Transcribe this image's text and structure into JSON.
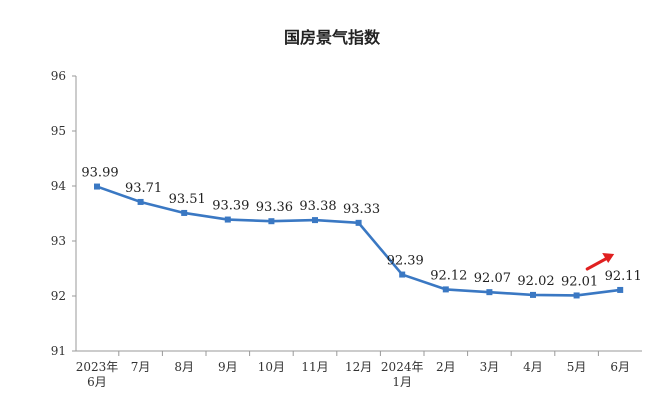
{
  "chart_data": {
    "type": "line",
    "title": "国房景气指数",
    "xlabel": "",
    "ylabel": "",
    "categories": [
      [
        "2023年",
        "6月"
      ],
      [
        "7月"
      ],
      [
        "8月"
      ],
      [
        "9月"
      ],
      [
        "10月"
      ],
      [
        "11月"
      ],
      [
        "12月"
      ],
      [
        "2024年",
        "1月"
      ],
      [
        "2月"
      ],
      [
        "3月"
      ],
      [
        "4月"
      ],
      [
        "5月"
      ],
      [
        "6月"
      ]
    ],
    "series": [
      {
        "values": [
          93.99,
          93.71,
          93.51,
          93.39,
          93.36,
          93.38,
          93.33,
          92.39,
          92.12,
          92.07,
          92.02,
          92.01,
          92.11
        ],
        "value_labels": [
          "93.99",
          "93.71",
          "93.51",
          "93.39",
          "93.36",
          "93.38",
          "93.33",
          "92.39",
          "92.12",
          "92.07",
          "92.02",
          "92.01",
          "92.11"
        ]
      }
    ],
    "ylim": [
      91,
      96
    ],
    "yticks": [
      91,
      92,
      93,
      94,
      95,
      96
    ],
    "grid": false,
    "legend": "none",
    "colors": {
      "line": "#3a78c3",
      "marker": "#3a78c3",
      "axis": "#999999",
      "arrow": "#e02020"
    },
    "annotations": [
      {
        "kind": "arrow-icon",
        "direction": "up-right",
        "near_category_index": 12
      }
    ]
  }
}
